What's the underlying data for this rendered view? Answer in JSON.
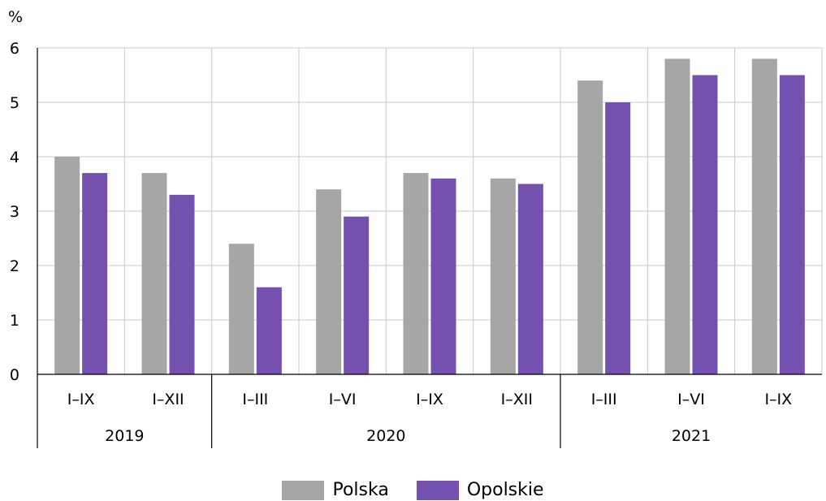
{
  "chart_data": {
    "type": "bar",
    "unit_label": "%",
    "categories": [
      "I–IX",
      "I–XII",
      "I–III",
      "I–VI",
      "I–IX",
      "I–XII",
      "I–III",
      "I–VI",
      "I–IX"
    ],
    "groups": [
      {
        "label": "2019",
        "categories": [
          "I–IX",
          "I–XII"
        ]
      },
      {
        "label": "2020",
        "categories": [
          "I–III",
          "I–VI",
          "I–IX",
          "I–XII"
        ]
      },
      {
        "label": "2021",
        "categories": [
          "I–III",
          "I–VI",
          "I–IX"
        ]
      }
    ],
    "series": [
      {
        "name": "Polska",
        "color": "#a6a6a6",
        "values": [
          4.0,
          3.7,
          2.4,
          3.4,
          3.7,
          3.6,
          5.4,
          5.8,
          5.8
        ]
      },
      {
        "name": "Opolskie",
        "color": "#7451ae",
        "values": [
          3.7,
          3.3,
          1.6,
          2.9,
          3.6,
          3.5,
          5.0,
          5.5,
          5.5
        ]
      }
    ],
    "yticks": [
      0,
      1,
      2,
      3,
      4,
      5,
      6
    ],
    "ylim": [
      0,
      6
    ],
    "grid": true,
    "legend_position": "bottom"
  },
  "legend": {
    "items": [
      {
        "label": "Polska",
        "color": "#a6a6a6"
      },
      {
        "label": "Opolskie",
        "color": "#7451ae"
      }
    ]
  }
}
